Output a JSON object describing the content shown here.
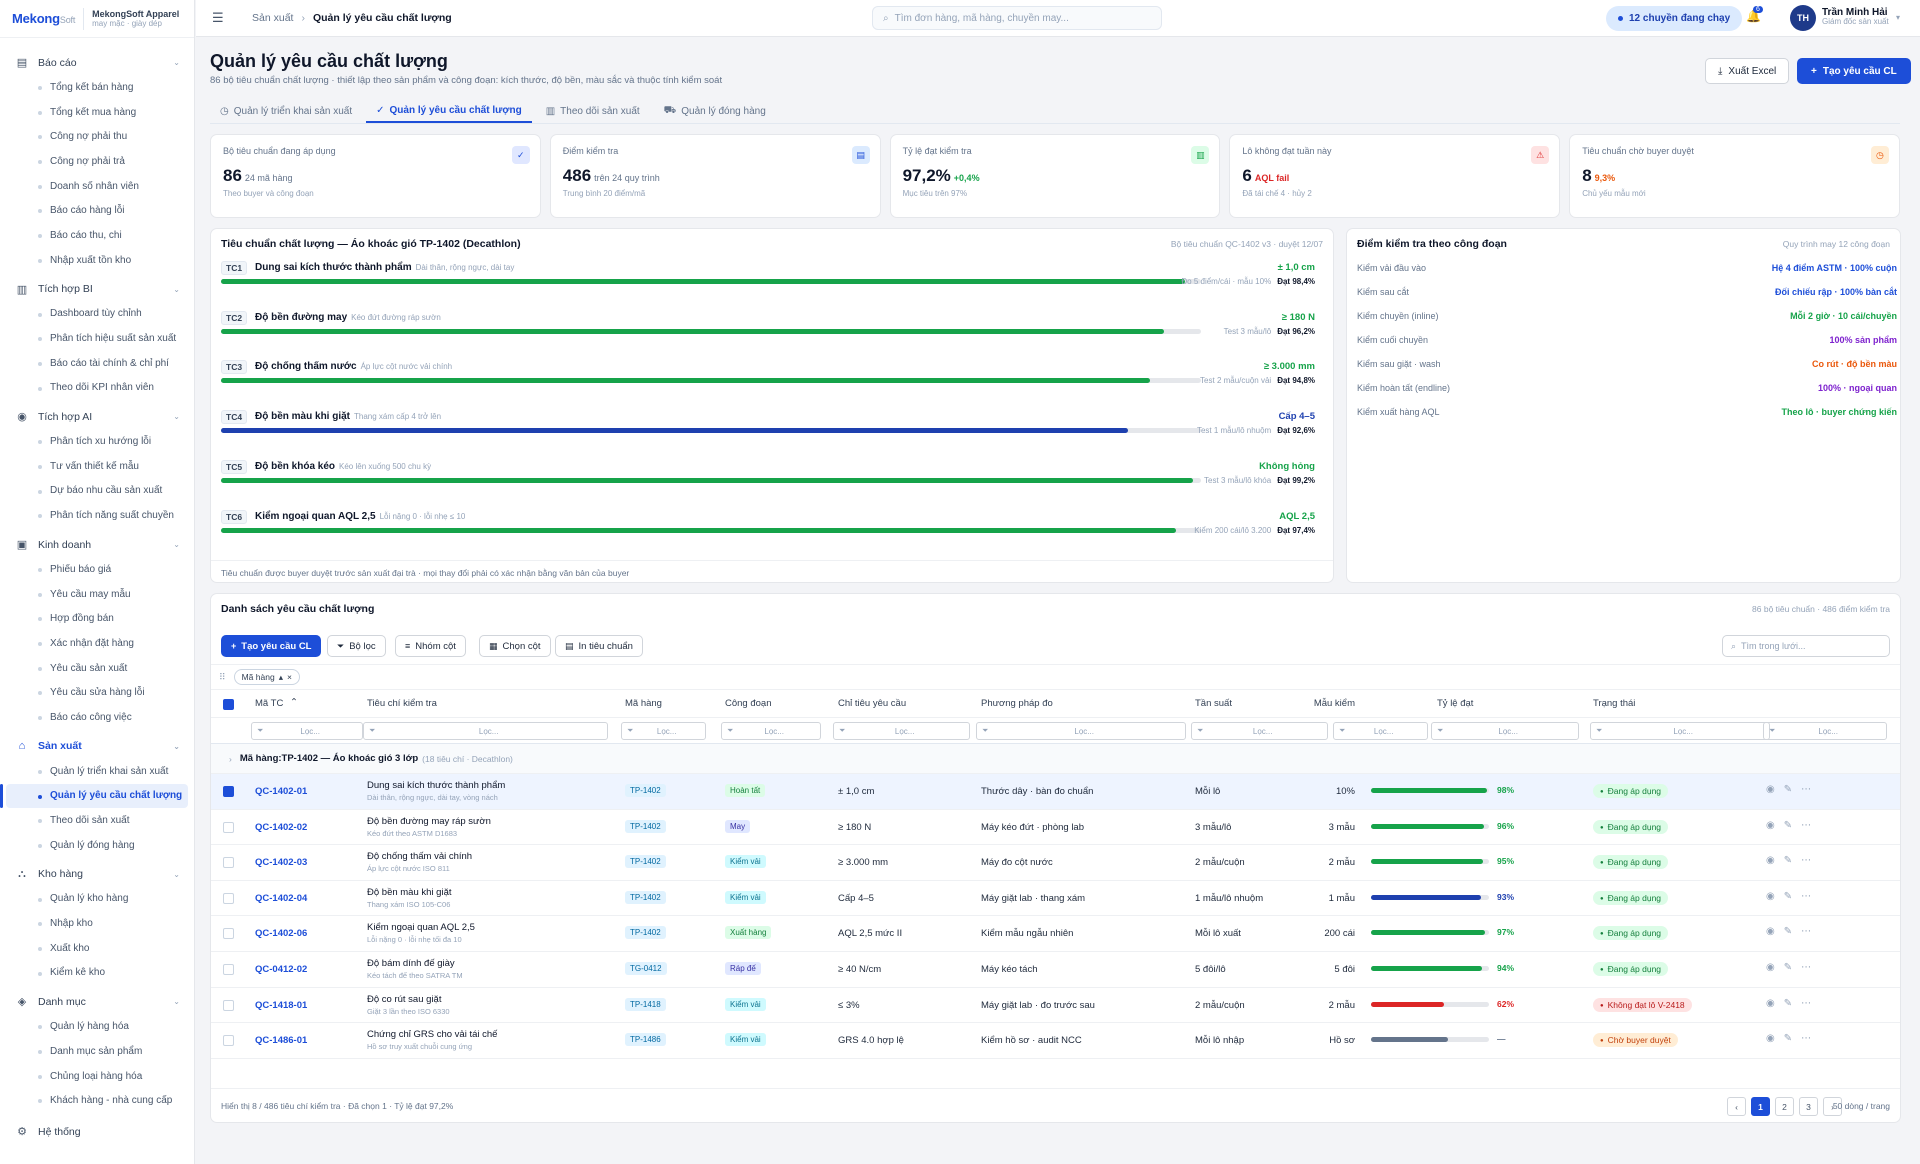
{
  "brand": {
    "logo": "Mekong",
    "logo_suffix": "Soft",
    "company": "MekongSoft Apparel",
    "tagline": "may mặc · giày dép"
  },
  "sidebar": {
    "groups": [
      {
        "label": "Báo cáo",
        "icon": "report-icon",
        "items": [
          "Tổng kết bán hàng",
          "Tổng kết mua hàng",
          "Công nợ phải thu",
          "Công nợ phải trả",
          "Doanh số nhân viên",
          "Báo cáo hàng lỗi",
          "Báo cáo thu, chi",
          "Nhập xuất tồn kho"
        ]
      },
      {
        "label": "Tích hợp BI",
        "icon": "chart-icon",
        "items": [
          "Dashboard tùy chỉnh",
          "Phân tích hiệu suất sản xuất",
          "Báo cáo tài chính & chỉ phí",
          "Theo dõi KPI nhân viên"
        ]
      },
      {
        "label": "Tích hợp AI",
        "icon": "ai-icon",
        "items": [
          "Phân tích xu hướng lỗi",
          "Tư vấn thiết kế mẫu",
          "Dự báo nhu cầu sản xuất",
          "Phân tích năng suất chuyền"
        ]
      },
      {
        "label": "Kinh doanh",
        "icon": "money-icon",
        "items": [
          "Phiếu báo giá",
          "Yêu cầu may mẫu",
          "Hợp đồng bán",
          "Xác nhận đặt hàng",
          "Yêu cầu sản xuất",
          "Yêu cầu sửa hàng lỗi",
          "Báo cáo công việc"
        ]
      },
      {
        "label": "Sản xuất",
        "icon": "factory-icon",
        "active": true,
        "items": [
          "Quản lý triển khai sản xuất",
          "Quản lý yêu cầu chất lượng",
          "Theo dõi sản xuất",
          "Quản lý đóng hàng"
        ],
        "active_item": 1
      },
      {
        "label": "Kho hàng",
        "icon": "warehouse-icon",
        "items": [
          "Quản lý kho hàng",
          "Nhập kho",
          "Xuất kho",
          "Kiểm kê kho"
        ]
      },
      {
        "label": "Danh mục",
        "icon": "catalog-icon",
        "items": [
          "Quản lý hàng hóa",
          "Danh mục sản phẩm",
          "Chủng loại hàng hóa",
          "Khách hàng - nhà cung cấp"
        ]
      }
    ],
    "system": "Hệ thống"
  },
  "topbar": {
    "breadcrumb_parent": "Sản xuất",
    "breadcrumb_current": "Quản lý yêu cầu chất lượng",
    "search_placeholder": "Tìm đơn hàng, mã hàng, chuyền may...",
    "running": "12 chuyền đang chạy",
    "notif_count": "6",
    "avatar": "TH",
    "user_name": "Trần Minh Hải",
    "user_role": "Giám đốc sản xuất"
  },
  "page": {
    "title": "Quản lý yêu cầu chất lượng",
    "subtitle": "86 bộ tiêu chuẩn chất lượng · thiết lập theo sản phẩm và công đoạn: kích thước, độ bền, màu sắc và thuộc tính kiểm soát",
    "export_label": "Xuất Excel",
    "create_label": "Tạo yêu cầu CL"
  },
  "tabs": [
    {
      "label": "Quản lý triển khai sản xuất",
      "icon": "clock-icon"
    },
    {
      "label": "Quản lý yêu cầu chất lượng",
      "icon": "check-circle-icon",
      "active": true
    },
    {
      "label": "Theo dõi sản xuất",
      "icon": "bar-chart-icon"
    },
    {
      "label": "Quản lý đóng hàng",
      "icon": "truck-icon"
    }
  ],
  "kpis": [
    {
      "label": "Bộ tiêu chuẩn đang áp dụng",
      "value": "86",
      "extra": "24 mã hàng",
      "extra_tone": "n",
      "sub": "Theo buyer và công đoạn",
      "icon": "check-circle-icon",
      "icon_glyph": "✓",
      "icon_bg": "#e0e7ff",
      "icon_color": "#1d4ed8"
    },
    {
      "label": "Điểm kiểm tra",
      "value": "486",
      "extra": "trên 24 quy trình",
      "extra_tone": "n",
      "sub": "Trung bình 20 điểm/mã",
      "icon": "document-icon",
      "icon_glyph": "▤",
      "icon_bg": "#dbeafe",
      "icon_color": "#1d4ed8"
    },
    {
      "label": "Tỷ lệ đạt kiểm tra",
      "value": "97,2%",
      "extra": "+0,4%",
      "extra_tone": "g",
      "sub": "Mục tiêu trên 97%",
      "icon": "bar-chart-icon",
      "icon_glyph": "▥",
      "icon_bg": "#dcfce7",
      "icon_color": "#16a34a"
    },
    {
      "label": "Lô không đạt tuần này",
      "value": "6",
      "extra": "AQL fail",
      "extra_tone": "r",
      "sub": "Đã tái chế 4 · hủy 2",
      "icon": "warning-icon",
      "icon_glyph": "⚠",
      "icon_bg": "#fee2e2",
      "icon_color": "#dc2626"
    },
    {
      "label": "Tiêu chuẩn chờ buyer duyệt",
      "value": "8",
      "extra": "9,3%",
      "extra_tone": "o",
      "sub": "Chủ yếu mẫu mới",
      "icon": "clock-icon",
      "icon_glyph": "◷",
      "icon_bg": "#ffedd5",
      "icon_color": "#ea580c"
    }
  ],
  "standard_panel": {
    "title": "Tiêu chuẩn chất lượng — Áo khoác gió TP-1402 (Decathlon)",
    "meta": "Bộ tiêu chuẩn QC-1402 v3 · duyệt 12/07",
    "footer": "Tiêu chuẩn được buyer duyệt trước sản xuất đại trà · mọi thay đổi phải có xác nhận bằng văn bản của buyer",
    "criteria": [
      {
        "code": "TC1",
        "name": "Dung sai kích thước thành phẩm",
        "desc": "Dài thân, rộng ngực, dài tay",
        "value": "± 1,0 cm",
        "color": "#16a34a",
        "pass": 98.4,
        "sample": "Đo 5 điểm/cái · mẫu 10%",
        "pass_label": "Đạt 98,4%"
      },
      {
        "code": "TC2",
        "name": "Độ bền đường may",
        "desc": "Kéo đứt đường ráp sườn",
        "value": "≥ 180 N",
        "color": "#16a34a",
        "pass": 96.2,
        "sample": "Test 3 mẫu/lô",
        "pass_label": "Đạt 96,2%"
      },
      {
        "code": "TC3",
        "name": "Độ chống thấm nước",
        "desc": "Áp lực cột nước vải chính",
        "value": "≥ 3.000 mm",
        "color": "#16a34a",
        "pass": 94.8,
        "sample": "Test 2 mẫu/cuộn vải",
        "pass_label": "Đạt 94,8%"
      },
      {
        "code": "TC4",
        "name": "Độ bền màu khi giặt",
        "desc": "Thang xám cấp 4 trở lên",
        "value": "Cấp 4–5",
        "color": "#1e40af",
        "pass": 92.6,
        "sample": "Test 1 mẫu/lô nhuộm",
        "pass_label": "Đạt 92,6%"
      },
      {
        "code": "TC5",
        "name": "Độ bền khóa kéo",
        "desc": "Kéo lên xuống 500 chu kỳ",
        "value": "Không hỏng",
        "color": "#16a34a",
        "pass": 99.2,
        "sample": "Test 3 mẫu/lô khóa",
        "pass_label": "Đạt 99,2%"
      },
      {
        "code": "TC6",
        "name": "Kiểm ngoại quan AQL 2,5",
        "desc": "Lỗi nặng 0 · lỗi nhẹ ≤ 10",
        "value": "AQL 2,5",
        "color": "#16a34a",
        "pass": 97.4,
        "sample": "Kiểm 200 cái/lô 3.200",
        "pass_label": "Đạt 97,4%"
      }
    ]
  },
  "stage_panel": {
    "title": "Điểm kiểm tra theo công đoạn",
    "meta": "Quy trình may 12 công đoạn",
    "stages": [
      {
        "label": "Kiểm vải đầu vào",
        "value": "Hệ 4 điểm ASTM · 100% cuộn",
        "color": "#1d4ed8"
      },
      {
        "label": "Kiểm sau cắt",
        "value": "Đối chiếu rập · 100% bàn cắt",
        "color": "#1d4ed8"
      },
      {
        "label": "Kiểm chuyền (inline)",
        "value": "Mỗi 2 giờ · 10 cái/chuyền",
        "color": "#16a34a"
      },
      {
        "label": "Kiểm cuối chuyền",
        "value": "100% sản phẩm",
        "color": "#7e22ce"
      },
      {
        "label": "Kiểm sau giặt · wash",
        "value": "Co rút · độ bền màu",
        "color": "#ea580c"
      },
      {
        "label": "Kiểm hoàn tất (endline)",
        "value": "100% · ngoại quan",
        "color": "#7e22ce"
      },
      {
        "label": "Kiểm xuất hàng AQL",
        "value": "Theo lô · buyer chứng kiến",
        "color": "#16a34a"
      }
    ]
  },
  "grid": {
    "title": "Danh sách yêu cầu chất lượng",
    "meta": "86 bộ tiêu chuẩn · 486 điểm kiểm tra",
    "toolbar": {
      "create": "Tạo yêu cầu CL",
      "filter": "Bộ lọc",
      "group": "Nhóm cột",
      "columns": "Chọn cột",
      "print": "In tiêu chuẩn",
      "search_placeholder": "Tìm trong lưới..."
    },
    "chip": "Mã hàng",
    "filter_placeholder": "Lọc...",
    "columns": [
      "Mã TC",
      "Tiêu chí kiểm tra",
      "Mã hàng",
      "Công đoạn",
      "Chỉ tiêu yêu cầu",
      "Phương pháp đo",
      "Tần suất",
      "Mẫu kiểm",
      "Tỷ lệ đạt",
      "Trạng thái"
    ],
    "group_label": "Mã hàng",
    "group_value": "TP-1402 — Áo khoác gió 3 lớp",
    "group_note": "(18 tiêu chí · Decathlon)",
    "rows": [
      {
        "code": "QC-1402-01",
        "name": "Dung sai kích thước thành phẩm",
        "desc": "Dài thân, rộng ngực, dài tay, vòng nách",
        "item": "TP-1402",
        "stage": "Hoàn tất",
        "stage_bg": "#dcfce7",
        "stage_fg": "#15803d",
        "target": "± 1,0 cm",
        "method": "Thước dây · bàn đo chuẩn",
        "freq": "Mỗi lô",
        "sample": "10%",
        "rate": 98,
        "rate_label": "98%",
        "rate_color": "#16a34a",
        "status": "Đang áp dụng",
        "st_bg": "#dcfce7",
        "st_fg": "#15803d",
        "selected": true
      },
      {
        "code": "QC-1402-02",
        "name": "Độ bền đường may ráp sườn",
        "desc": "Kéo đứt theo ASTM D1683",
        "item": "TP-1402",
        "stage": "May",
        "stage_bg": "#e0e7ff",
        "stage_fg": "#3730a3",
        "target": "≥ 180 N",
        "method": "Máy kéo đứt · phòng lab",
        "freq": "3 mẫu/lô",
        "sample": "3 mẫu",
        "rate": 96,
        "rate_label": "96%",
        "rate_color": "#16a34a",
        "status": "Đang áp dụng",
        "st_bg": "#dcfce7",
        "st_fg": "#15803d"
      },
      {
        "code": "QC-1402-03",
        "name": "Độ chống thấm vải chính",
        "desc": "Áp lực cột nước ISO 811",
        "item": "TP-1402",
        "stage": "Kiểm vải",
        "stage_bg": "#cffafe",
        "stage_fg": "#0e7490",
        "target": "≥ 3.000 mm",
        "method": "Máy đo cột nước",
        "freq": "2 mẫu/cuộn",
        "sample": "2 mẫu",
        "rate": 95,
        "rate_label": "95%",
        "rate_color": "#16a34a",
        "status": "Đang áp dụng",
        "st_bg": "#dcfce7",
        "st_fg": "#15803d"
      },
      {
        "code": "QC-1402-04",
        "name": "Độ bền màu khi giặt",
        "desc": "Thang xám ISO 105-C06",
        "item": "TP-1402",
        "stage": "Kiểm vải",
        "stage_bg": "#cffafe",
        "stage_fg": "#0e7490",
        "target": "Cấp 4–5",
        "method": "Máy giặt lab · thang xám",
        "freq": "1 mẫu/lô nhuộm",
        "sample": "1 mẫu",
        "rate": 93,
        "rate_label": "93%",
        "rate_color": "#1e40af",
        "status": "Đang áp dụng",
        "st_bg": "#dcfce7",
        "st_fg": "#15803d"
      },
      {
        "code": "QC-1402-06",
        "name": "Kiểm ngoại quan AQL 2,5",
        "desc": "Lỗi nặng 0 · lỗi nhẹ tối đa 10",
        "item": "TP-1402",
        "stage": "Xuất hàng",
        "stage_bg": "#dcfce7",
        "stage_fg": "#15803d",
        "target": "AQL 2,5 mức II",
        "method": "Kiểm mẫu ngẫu nhiên",
        "freq": "Mỗi lô xuất",
        "sample": "200 cái",
        "rate": 97,
        "rate_label": "97%",
        "rate_color": "#16a34a",
        "status": "Đang áp dụng",
        "st_bg": "#dcfce7",
        "st_fg": "#15803d"
      },
      {
        "code": "QC-0412-02",
        "name": "Độ bám dính đế giày",
        "desc": "Kéo tách đế theo SATRA TM",
        "item": "TG-0412",
        "stage": "Ráp đế",
        "stage_bg": "#e0e7ff",
        "stage_fg": "#3730a3",
        "target": "≥ 40 N/cm",
        "method": "Máy kéo tách",
        "freq": "5 đôi/lô",
        "sample": "5 đôi",
        "rate": 94,
        "rate_label": "94%",
        "rate_color": "#16a34a",
        "status": "Đang áp dụng",
        "st_bg": "#dcfce7",
        "st_fg": "#15803d"
      },
      {
        "code": "QC-1418-01",
        "name": "Độ co rút sau giặt",
        "desc": "Giặt 3 lần theo ISO 6330",
        "item": "TP-1418",
        "stage": "Kiểm vải",
        "stage_bg": "#cffafe",
        "stage_fg": "#0e7490",
        "target": "≤ 3%",
        "method": "Máy giặt lab · đo trước sau",
        "freq": "2 mẫu/cuộn",
        "sample": "2 mẫu",
        "rate": 62,
        "rate_label": "62%",
        "rate_color": "#dc2626",
        "status": "Không đạt lô V-2418",
        "st_bg": "#fee2e2",
        "st_fg": "#b91c1c"
      },
      {
        "code": "QC-1486-01",
        "name": "Chứng chỉ GRS cho vải tái chế",
        "desc": "Hồ sơ truy xuất chuỗi cung ứng",
        "item": "TP-1486",
        "stage": "Kiểm vải",
        "stage_bg": "#cffafe",
        "stage_fg": "#0e7490",
        "target": "GRS 4.0 hợp lệ",
        "method": "Kiểm hồ sơ · audit NCC",
        "freq": "Mỗi lô nhập",
        "sample": "Hồ sơ",
        "rate": 65,
        "rate_label": "—",
        "rate_color": "#64748b",
        "status": "Chờ buyer duyệt",
        "st_bg": "#ffedd5",
        "st_fg": "#c2410c"
      }
    ],
    "footer": "Hiển thị 8 / 486 tiêu chí kiểm tra · Đã chọn 1 · Tỷ lệ đạt 97,2%",
    "pages": [
      "1",
      "2",
      "3"
    ],
    "page_size": "50 dòng / trang"
  }
}
